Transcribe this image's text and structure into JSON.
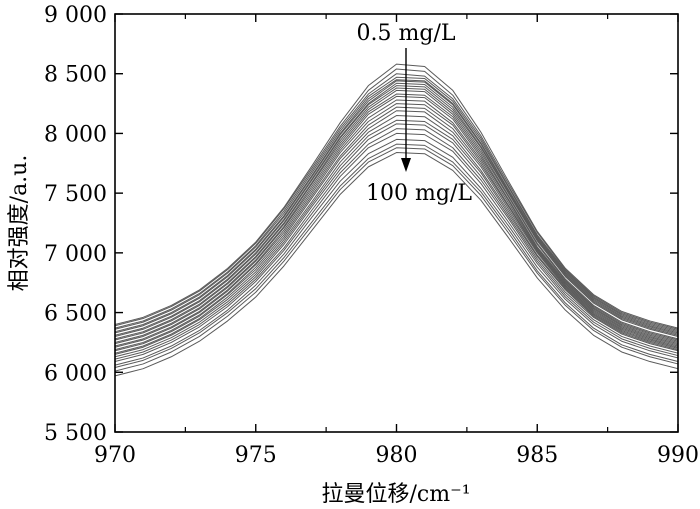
{
  "chart_data": {
    "type": "line",
    "title": "",
    "xlabel": "拉曼位移/cm⁻¹",
    "ylabel": "相对强度/a.u.",
    "xlim": [
      970,
      990
    ],
    "ylim": [
      5500,
      9000
    ],
    "x_ticks": [
      970,
      975,
      980,
      985,
      990
    ],
    "x_tick_labels": [
      "970",
      "975",
      "980",
      "985",
      "990"
    ],
    "y_ticks": [
      5500,
      6000,
      6500,
      7000,
      7500,
      8000,
      8500,
      9000
    ],
    "y_tick_labels": [
      "5 500",
      "6 000",
      "6 500",
      "7 000",
      "7 500",
      "8 000",
      "8 500",
      "9 000"
    ],
    "grid": false,
    "annotations": {
      "top": "0.5 mg/L",
      "bottom": "100 mg/L"
    },
    "x": [
      970,
      971,
      972,
      973,
      974,
      975,
      976,
      977,
      978,
      979,
      980,
      981,
      982,
      983,
      984,
      985,
      986,
      987,
      988,
      989,
      990
    ],
    "series": [
      {
        "values": [
          6400,
          6460,
          6560,
          6690,
          6870,
          7090,
          7380,
          7730,
          8090,
          8400,
          8580,
          8560,
          8360,
          8010,
          7590,
          7180,
          6870,
          6650,
          6510,
          6430,
          6370
        ]
      },
      {
        "values": [
          6390,
          6450,
          6550,
          6680,
          6860,
          7080,
          7370,
          7710,
          8060,
          8360,
          8540,
          8520,
          8320,
          7980,
          7570,
          7170,
          6860,
          6640,
          6500,
          6420,
          6360
        ]
      },
      {
        "values": [
          6370,
          6430,
          6530,
          6660,
          6840,
          7060,
          7350,
          7690,
          8040,
          8330,
          8500,
          8480,
          8290,
          7960,
          7550,
          7150,
          6850,
          6630,
          6490,
          6410,
          6350
        ]
      },
      {
        "values": [
          6360,
          6420,
          6520,
          6650,
          6830,
          7050,
          7330,
          7670,
          8020,
          8310,
          8470,
          8460,
          8270,
          7940,
          7540,
          7140,
          6840,
          6620,
          6480,
          6400,
          6340
        ]
      },
      {
        "values": [
          6340,
          6400,
          6500,
          6630,
          6810,
          7030,
          7310,
          7650,
          8000,
          8290,
          8450,
          8440,
          8250,
          7920,
          7520,
          7130,
          6830,
          6610,
          6470,
          6390,
          6330
        ]
      },
      {
        "values": [
          6330,
          6390,
          6490,
          6620,
          6800,
          7020,
          7300,
          7640,
          7990,
          8270,
          8440,
          8430,
          8240,
          7910,
          7510,
          7120,
          6820,
          6600,
          6460,
          6380,
          6320
        ]
      },
      {
        "values": [
          6310,
          6370,
          6470,
          6600,
          6780,
          7000,
          7280,
          7620,
          7970,
          8250,
          8420,
          8410,
          8220,
          7890,
          7500,
          7110,
          6810,
          6590,
          6450,
          6370,
          6310
        ]
      },
      {
        "values": [
          6300,
          6360,
          6460,
          6590,
          6770,
          6990,
          7270,
          7610,
          7960,
          8240,
          8400,
          8390,
          8200,
          7880,
          7490,
          7100,
          6800,
          6580,
          6440,
          6360,
          6300
        ]
      },
      {
        "values": [
          6280,
          6340,
          6440,
          6570,
          6750,
          6970,
          7250,
          7590,
          7940,
          8220,
          8380,
          8370,
          8180,
          7860,
          7470,
          7080,
          6780,
          6560,
          6420,
          6340,
          6280
        ]
      },
      {
        "values": [
          6270,
          6330,
          6430,
          6560,
          6740,
          6960,
          7240,
          7580,
          7920,
          8200,
          8360,
          8350,
          8160,
          7840,
          7460,
          7070,
          6770,
          6550,
          6410,
          6330,
          6270
        ]
      },
      {
        "values": [
          6250,
          6310,
          6410,
          6540,
          6720,
          6940,
          7220,
          7560,
          7900,
          8180,
          8330,
          8320,
          8140,
          7820,
          7440,
          7050,
          6760,
          6540,
          6400,
          6320,
          6260
        ]
      },
      {
        "values": [
          6240,
          6300,
          6400,
          6530,
          6710,
          6930,
          7210,
          7540,
          7880,
          8160,
          8310,
          8300,
          8120,
          7800,
          7430,
          7040,
          6750,
          6530,
          6390,
          6310,
          6250
        ]
      },
      {
        "values": [
          6220,
          6280,
          6380,
          6510,
          6690,
          6910,
          7190,
          7520,
          7860,
          8130,
          8280,
          8270,
          8090,
          7780,
          7410,
          7030,
          6740,
          6520,
          6380,
          6300,
          6240
        ]
      },
      {
        "values": [
          6210,
          6270,
          6370,
          6500,
          6680,
          6900,
          7170,
          7500,
          7840,
          8100,
          8250,
          8240,
          8070,
          7760,
          7390,
          7020,
          6730,
          6510,
          6370,
          6290,
          6230
        ]
      },
      {
        "values": [
          6190,
          6250,
          6350,
          6480,
          6660,
          6880,
          7150,
          7480,
          7810,
          8070,
          8220,
          8210,
          8040,
          7740,
          7380,
          7010,
          6720,
          6500,
          6360,
          6280,
          6220
        ]
      },
      {
        "values": [
          6180,
          6240,
          6340,
          6470,
          6650,
          6860,
          7130,
          7460,
          7790,
          8040,
          8190,
          8180,
          8010,
          7720,
          7360,
          7000,
          6710,
          6490,
          6350,
          6270,
          6210
        ]
      },
      {
        "values": [
          6160,
          6220,
          6320,
          6450,
          6630,
          6840,
          7110,
          7430,
          7760,
          8010,
          8150,
          8140,
          7980,
          7690,
          7340,
          6980,
          6700,
          6480,
          6340,
          6260,
          6200
        ]
      },
      {
        "values": [
          6150,
          6210,
          6310,
          6440,
          6610,
          6820,
          7090,
          7410,
          7730,
          7980,
          8110,
          8100,
          7950,
          7670,
          7320,
          6970,
          6690,
          6470,
          6330,
          6250,
          6190
        ]
      },
      {
        "values": [
          6130,
          6190,
          6290,
          6420,
          6590,
          6800,
          7070,
          7390,
          7700,
          7950,
          8080,
          8070,
          7920,
          7640,
          7300,
          6950,
          6670,
          6460,
          6320,
          6240,
          6180
        ]
      },
      {
        "values": [
          6110,
          6170,
          6270,
          6400,
          6570,
          6780,
          7040,
          7360,
          7670,
          7910,
          8040,
          8030,
          7880,
          7610,
          7280,
          6930,
          6650,
          6440,
          6300,
          6220,
          6160
        ]
      },
      {
        "values": [
          6090,
          6150,
          6250,
          6380,
          6550,
          6760,
          7020,
          7330,
          7640,
          7880,
          8000,
          7990,
          7850,
          7580,
          7250,
          6910,
          6630,
          6420,
          6280,
          6200,
          6140
        ]
      },
      {
        "values": [
          6060,
          6120,
          6220,
          6350,
          6520,
          6730,
          6990,
          7300,
          7600,
          7830,
          7950,
          7940,
          7800,
          7540,
          7220,
          6880,
          6610,
          6400,
          6260,
          6180,
          6120
        ]
      },
      {
        "values": [
          6040,
          6100,
          6200,
          6330,
          6500,
          6700,
          6960,
          7260,
          7560,
          7790,
          7910,
          7900,
          7760,
          7510,
          7190,
          6850,
          6580,
          6370,
          6230,
          6150,
          6090
        ]
      },
      {
        "values": [
          6010,
          6070,
          6170,
          6300,
          6470,
          6670,
          6930,
          7230,
          7530,
          7760,
          7880,
          7870,
          7730,
          7480,
          7160,
          6830,
          6560,
          6350,
          6210,
          6130,
          6070
        ]
      },
      {
        "values": [
          5970,
          6030,
          6130,
          6260,
          6430,
          6630,
          6890,
          7190,
          7490,
          7720,
          7840,
          7830,
          7690,
          7440,
          7120,
          6790,
          6520,
          6310,
          6170,
          6090,
          6030
        ]
      }
    ],
    "line_color": "#5a5a5a"
  }
}
